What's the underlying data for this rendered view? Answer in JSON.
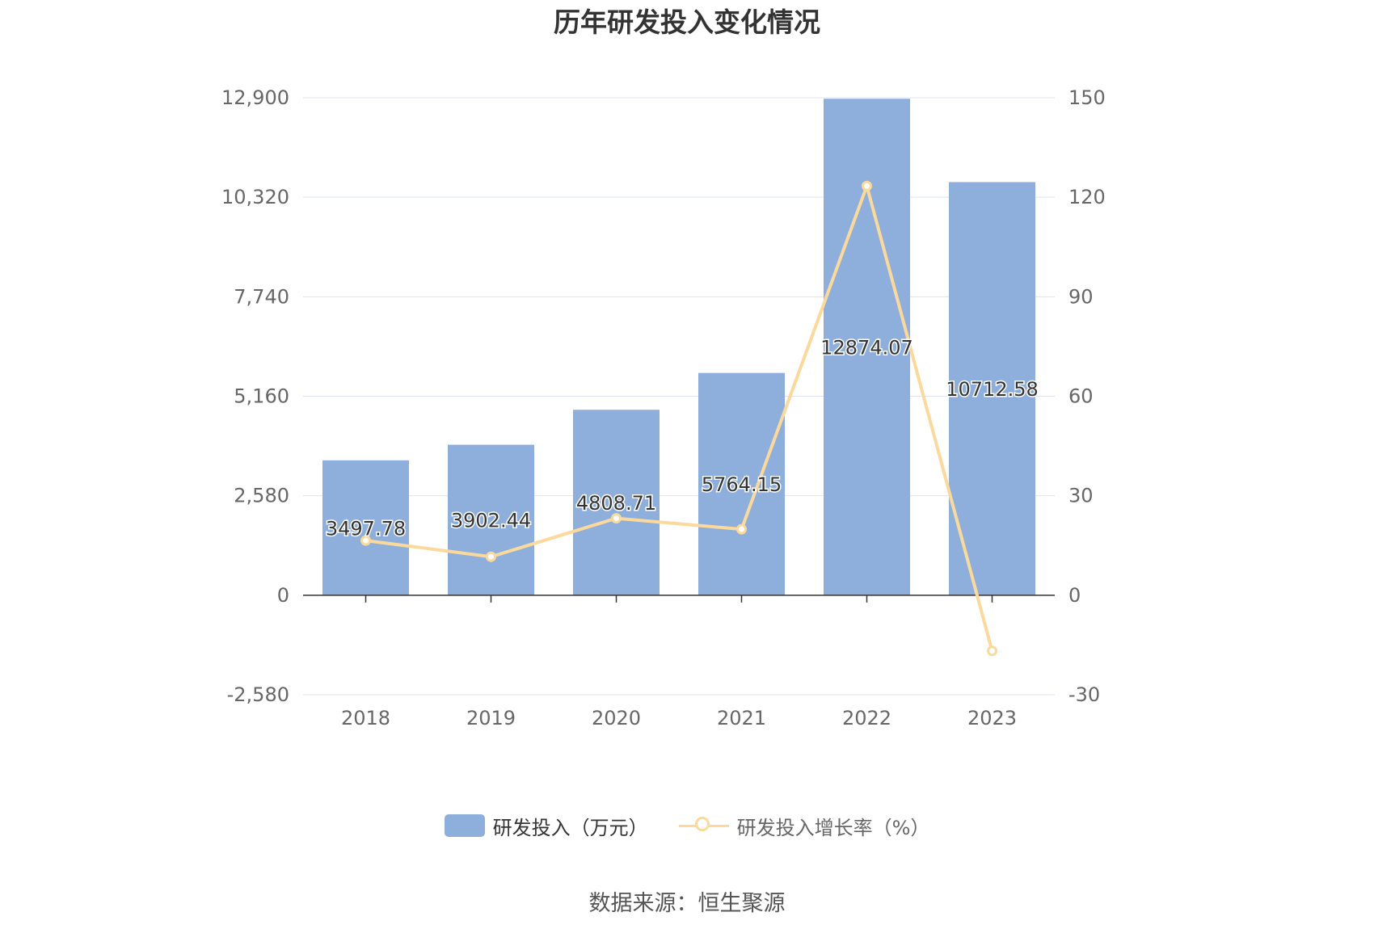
{
  "title": "历年研发投入变化情况",
  "source_label": "数据来源：恒生聚源",
  "colors": {
    "bar": "#8eaedb",
    "line": "#fbd99c",
    "grid": "#dde3f1",
    "axis_text": "#666666",
    "label_text": "#333333"
  },
  "chart_data": {
    "type": "bar",
    "categories": [
      "2018",
      "2019",
      "2020",
      "2021",
      "2022",
      "2023"
    ],
    "series": [
      {
        "name": "研发投入（万元）",
        "type": "bar",
        "axis": "left",
        "values": [
          3497.78,
          3902.44,
          4808.71,
          5764.15,
          12874.07,
          10712.58
        ],
        "labels": [
          "3497.78",
          "3902.44",
          "4808.71",
          "5764.15",
          "12874.07",
          "10712.58"
        ]
      },
      {
        "name": "研发投入增长率（%）",
        "type": "line",
        "axis": "right",
        "values": [
          16.5,
          11.6,
          23.2,
          19.9,
          123.4,
          -16.8
        ]
      }
    ],
    "y_left": {
      "ticks": [
        "12,900",
        "10,320",
        "7,740",
        "5,160",
        "2,580",
        "0",
        "-2,580"
      ],
      "min": -2580,
      "max": 12900
    },
    "y_right": {
      "ticks": [
        "150",
        "120",
        "90",
        "60",
        "30",
        "0",
        "-30"
      ],
      "min": -30,
      "max": 150
    },
    "grid": true,
    "legend_position": "bottom"
  }
}
